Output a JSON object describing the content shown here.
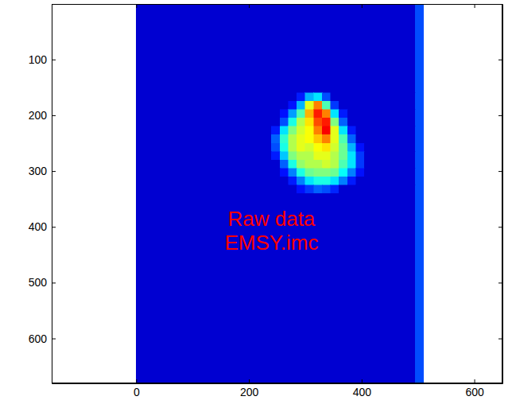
{
  "chart_data": {
    "type": "heatmap",
    "annotation": [
      "Raw data",
      "EMSY.imc"
    ],
    "x_edges": [
      0,
      240,
      255,
      270,
      285,
      300,
      315,
      330,
      345,
      360,
      375,
      390,
      405,
      420,
      495,
      510
    ],
    "y_edges": [
      0,
      160,
      175,
      190,
      205,
      220,
      235,
      250,
      265,
      280,
      295,
      310,
      325,
      340,
      680
    ],
    "z": [
      [
        8,
        8,
        8,
        8,
        8,
        8,
        8,
        8,
        8,
        8,
        8,
        8,
        8,
        8,
        20
      ],
      [
        8,
        8,
        8,
        8,
        15,
        30,
        35,
        20,
        8,
        8,
        8,
        8,
        8,
        8,
        20
      ],
      [
        8,
        8,
        8,
        14,
        30,
        60,
        75,
        45,
        18,
        8,
        8,
        8,
        8,
        8,
        20
      ],
      [
        8,
        8,
        14,
        28,
        45,
        70,
        85,
        75,
        35,
        15,
        8,
        8,
        8,
        8,
        20
      ],
      [
        8,
        8,
        20,
        40,
        55,
        65,
        80,
        85,
        50,
        22,
        8,
        8,
        8,
        8,
        20
      ],
      [
        8,
        15,
        35,
        50,
        58,
        62,
        75,
        88,
        60,
        35,
        15,
        8,
        8,
        8,
        20
      ],
      [
        8,
        22,
        42,
        55,
        60,
        62,
        68,
        75,
        60,
        45,
        22,
        8,
        8,
        8,
        20
      ],
      [
        8,
        20,
        40,
        55,
        60,
        58,
        62,
        65,
        58,
        48,
        30,
        14,
        8,
        8,
        20
      ],
      [
        8,
        15,
        32,
        50,
        55,
        55,
        60,
        60,
        55,
        48,
        35,
        18,
        8,
        8,
        20
      ],
      [
        8,
        8,
        22,
        40,
        52,
        55,
        55,
        58,
        55,
        45,
        35,
        18,
        8,
        8,
        20
      ],
      [
        8,
        8,
        14,
        25,
        40,
        48,
        50,
        50,
        48,
        38,
        25,
        14,
        8,
        8,
        20
      ],
      [
        8,
        8,
        8,
        15,
        25,
        35,
        40,
        40,
        35,
        25,
        15,
        8,
        8,
        8,
        20
      ],
      [
        8,
        8,
        8,
        8,
        14,
        18,
        22,
        20,
        16,
        8,
        8,
        8,
        8,
        8,
        20
      ],
      [
        8,
        8,
        8,
        8,
        8,
        8,
        8,
        8,
        8,
        8,
        8,
        8,
        8,
        8,
        20
      ]
    ],
    "zlim": [
      0,
      100
    ],
    "xlim": [
      -150,
      650
    ],
    "ylim": [
      680.5,
      0.5
    ],
    "xticks": [
      0,
      200,
      400,
      600
    ],
    "yticks": [
      100,
      200,
      300,
      400,
      500,
      600
    ],
    "grid": false
  }
}
